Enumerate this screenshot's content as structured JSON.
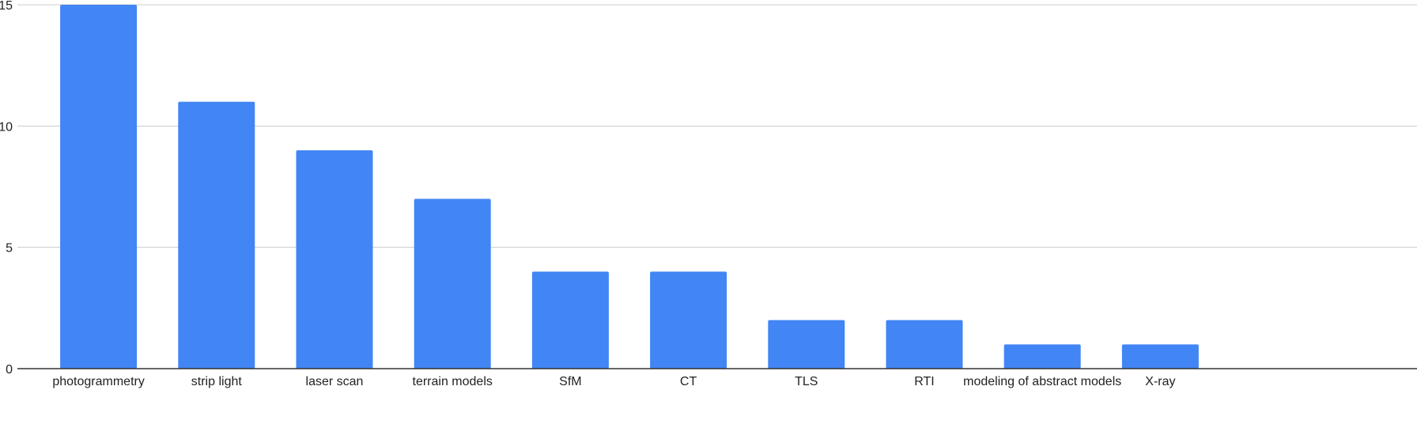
{
  "chart_data": {
    "type": "bar",
    "categories": [
      "photogrammetry",
      "strip light",
      "laser scan",
      "terrain models",
      "SfM",
      "CT",
      "TLS",
      "RTI",
      "modeling of abstract models",
      "X-ray"
    ],
    "values": [
      15,
      11,
      9,
      7,
      4,
      4,
      2,
      2,
      1,
      1
    ],
    "title": "",
    "xlabel": "",
    "ylabel": "",
    "ylim": [
      0,
      15
    ],
    "yticks": [
      "0",
      "5",
      "10",
      "15"
    ],
    "grid": true,
    "legend": "none",
    "colors": {
      "bar": "#4285f4",
      "grid": "#cccccc",
      "axis": "#333333"
    }
  }
}
